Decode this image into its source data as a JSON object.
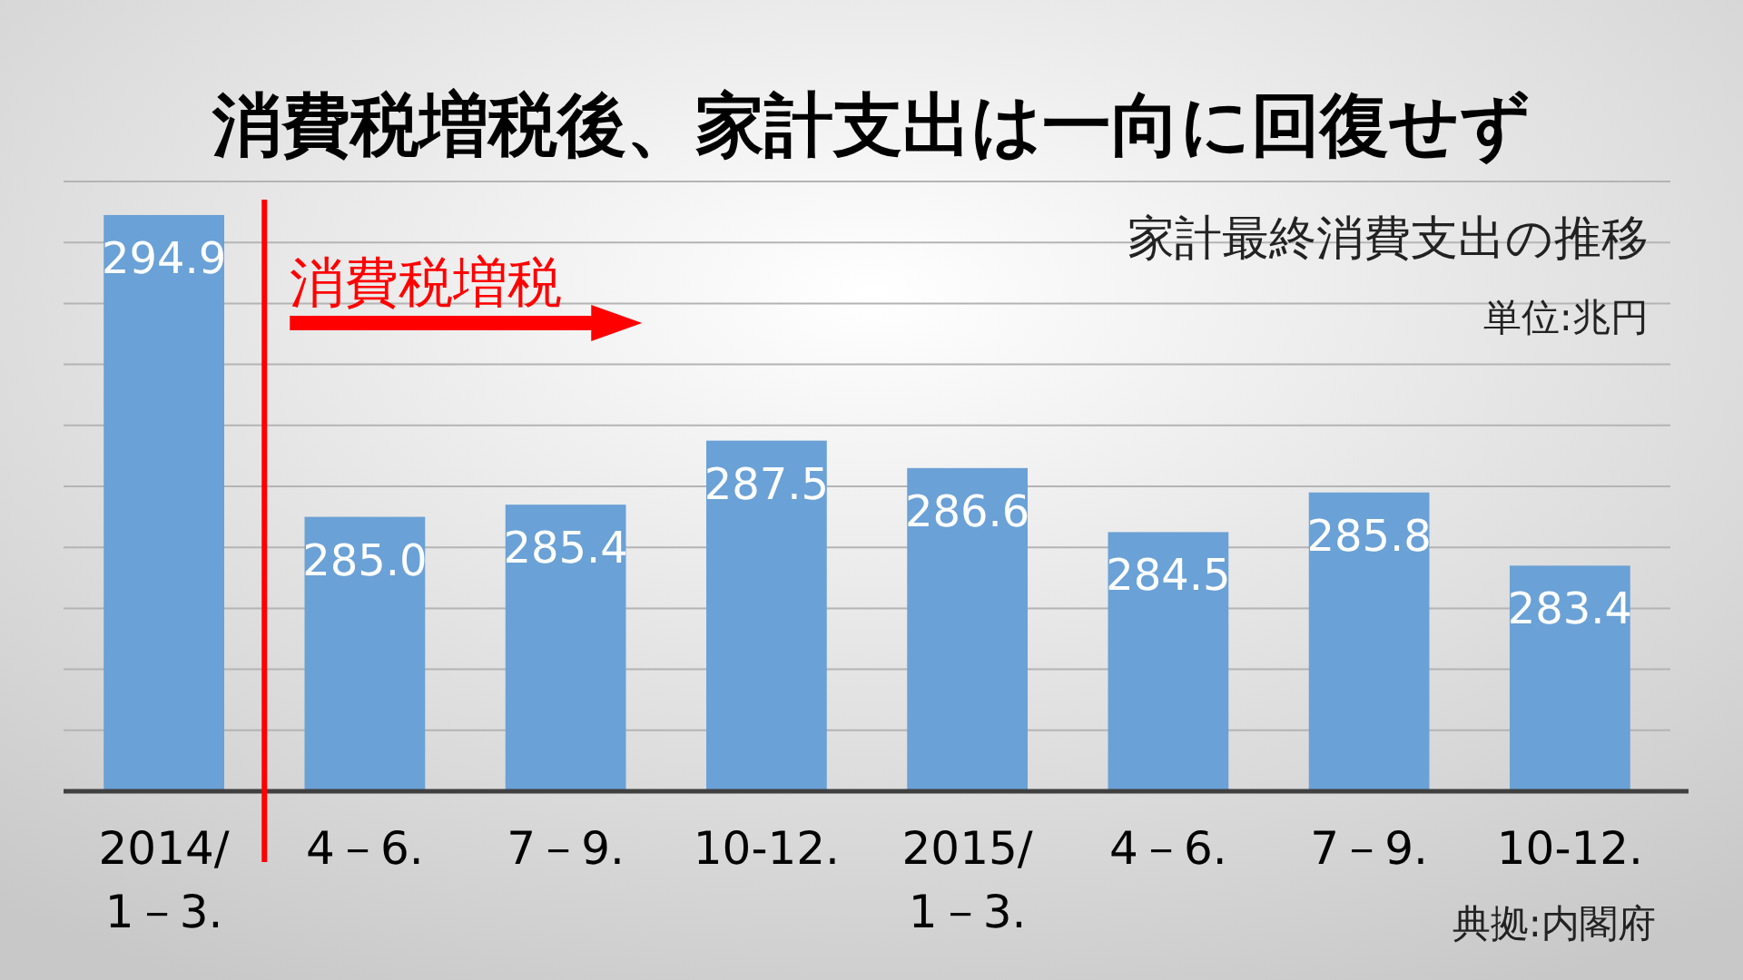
{
  "chart_data": {
    "type": "bar",
    "title": "消費税増税後、家計支出は一向に回復せず",
    "subtitle": "家計最終消費支出の推移",
    "annotations": [
      "単位:兆円",
      "典拠:内閣府"
    ],
    "categories": [
      "2014/\n1－3.",
      "4－6.",
      "7－9.",
      "10-12.",
      "2015/\n1－3.",
      "4－6.",
      "7－9.",
      "10-12."
    ],
    "values": [
      294.9,
      285.0,
      285.4,
      287.5,
      286.6,
      284.5,
      285.8,
      283.4
    ],
    "value_labels": [
      "294.9",
      "285.0",
      "285.4",
      "287.5",
      "286.6",
      "284.5",
      "285.8",
      "283.4"
    ],
    "color": "#6aa1d6",
    "grid": "y",
    "tick_labels": "x",
    "ylim": [
      276,
      296
    ],
    "yticks": [
      {
        "value": 276,
        "label": null
      },
      {
        "value": 278,
        "label": null
      },
      {
        "value": 280,
        "label": null
      },
      {
        "value": 282,
        "label": null
      },
      {
        "value": 284,
        "label": null
      },
      {
        "value": 286,
        "label": null
      },
      {
        "value": 288,
        "label": null
      },
      {
        "value": 290,
        "label": null
      },
      {
        "value": 292,
        "label": null
      },
      {
        "value": 294,
        "label": null
      },
      {
        "value": 296,
        "label": null
      }
    ],
    "ref_lines": [
      {
        "axis": "x",
        "value": "4－6.",
        "label": "消費税増税",
        "color": "#ff0000"
      }
    ]
  }
}
